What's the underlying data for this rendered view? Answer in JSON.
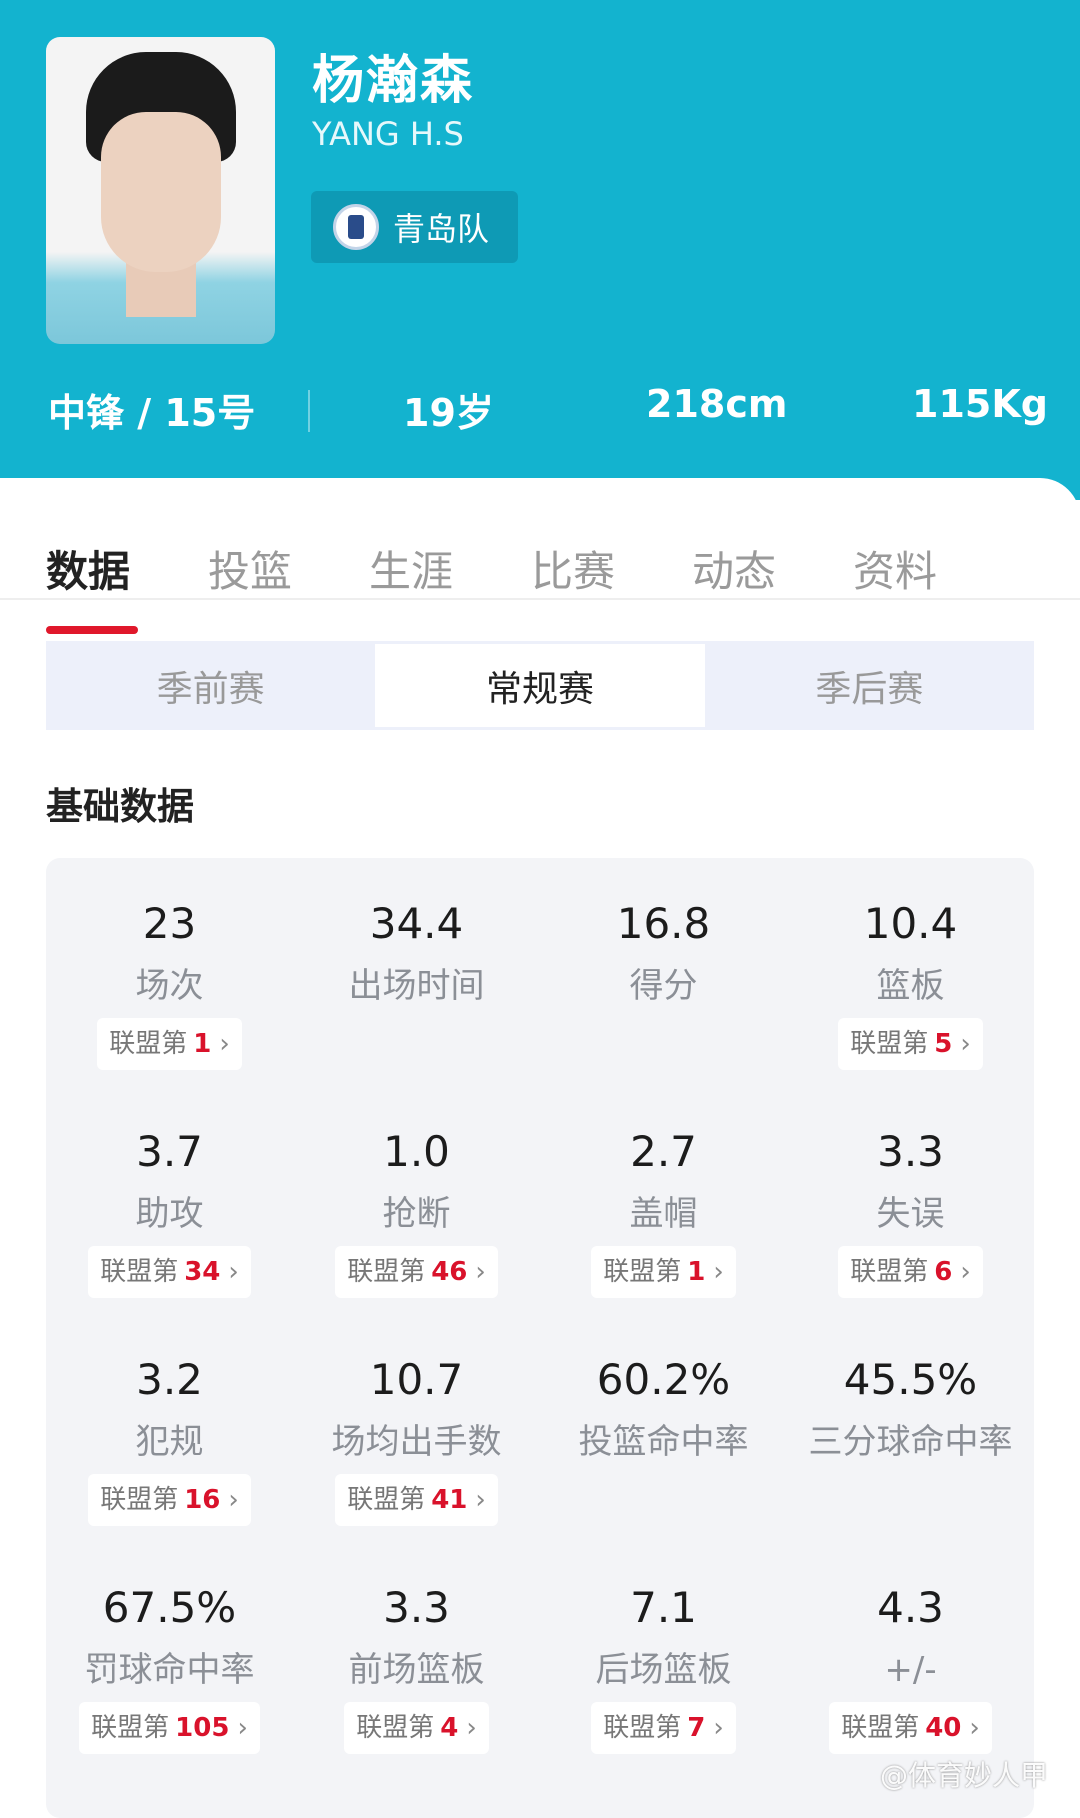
{
  "player": {
    "name": "杨瀚森",
    "name_en": "YANG H.S",
    "team": "青岛队",
    "position_number": "中锋 / 15号",
    "age": "19岁",
    "height": "218cm",
    "weight": "115Kg"
  },
  "tabs": [
    {
      "label": "数据",
      "active": true
    },
    {
      "label": "投篮"
    },
    {
      "label": "生涯"
    },
    {
      "label": "比赛"
    },
    {
      "label": "动态"
    },
    {
      "label": "资料"
    }
  ],
  "season_types": [
    {
      "label": "季前赛"
    },
    {
      "label": "常规赛",
      "active": true
    },
    {
      "label": "季后赛"
    }
  ],
  "section_title": "基础数据",
  "rank_prefix": "联盟第",
  "stats": [
    {
      "value": "23",
      "label": "场次",
      "rank": "1"
    },
    {
      "value": "34.4",
      "label": "出场时间",
      "rank": null
    },
    {
      "value": "16.8",
      "label": "得分",
      "rank": null
    },
    {
      "value": "10.4",
      "label": "篮板",
      "rank": "5"
    },
    {
      "value": "3.7",
      "label": "助攻",
      "rank": "34"
    },
    {
      "value": "1.0",
      "label": "抢断",
      "rank": "46"
    },
    {
      "value": "2.7",
      "label": "盖帽",
      "rank": "1"
    },
    {
      "value": "3.3",
      "label": "失误",
      "rank": "6"
    },
    {
      "value": "3.2",
      "label": "犯规",
      "rank": "16"
    },
    {
      "value": "10.7",
      "label": "场均出手数",
      "rank": "41"
    },
    {
      "value": "60.2%",
      "label": "投篮命中率",
      "rank": null
    },
    {
      "value": "45.5%",
      "label": "三分球命中率",
      "rank": null
    },
    {
      "value": "67.5%",
      "label": "罚球命中率",
      "rank": "105"
    },
    {
      "value": "3.3",
      "label": "前场篮板",
      "rank": "4"
    },
    {
      "value": "7.1",
      "label": "后场篮板",
      "rank": "7"
    },
    {
      "value": "4.3",
      "label": "+/-",
      "rank": "40"
    }
  ],
  "watermark": "@体育妙人甲",
  "colors": {
    "header": "#13b3cf",
    "accent": "#e0182b"
  }
}
